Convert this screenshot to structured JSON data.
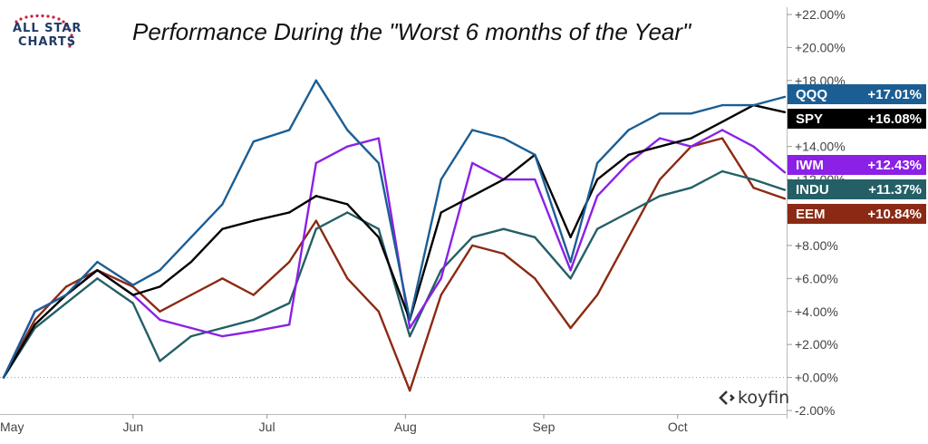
{
  "logo": {
    "line1": "ALL STAR",
    "line2": "CHARTS"
  },
  "watermark": "koyfin",
  "colors": {
    "QQQ": "#1b5e94",
    "SPY": "#000000",
    "IWM": "#8b20e6",
    "INDU": "#245f66",
    "EEM": "#8b2a14"
  },
  "chart_data": {
    "type": "line",
    "title": "Performance During the \"Worst 6 months of the Year\"",
    "xlabel": "",
    "ylabel": "",
    "x_ticks": [
      "May",
      "Jun",
      "Jul",
      "Aug",
      "Sep",
      "Oct"
    ],
    "y_ticks": [
      "-2.00%",
      "+0.00%",
      "+2.00%",
      "+4.00%",
      "+6.00%",
      "+8.00%",
      "+10.00%",
      "+12.00%",
      "+14.00%",
      "+16.00%",
      "+18.00%",
      "+20.00%",
      "+22.00%"
    ],
    "ylim": [
      -2,
      22
    ],
    "grid": false,
    "baseline": 0,
    "x": [
      "2021-05-03",
      "2021-05-10",
      "2021-05-17",
      "2021-05-24",
      "2021-06-01",
      "2021-06-07",
      "2021-06-14",
      "2021-06-21",
      "2021-06-28",
      "2021-07-06",
      "2021-07-12",
      "2021-07-19",
      "2021-07-26",
      "2021-08-02",
      "2021-08-09",
      "2021-08-16",
      "2021-08-23",
      "2021-08-30",
      "2021-09-07",
      "2021-09-13",
      "2021-09-20",
      "2021-09-27",
      "2021-10-04",
      "2021-10-11",
      "2021-10-18",
      "2021-10-25"
    ],
    "series": [
      {
        "name": "QQQ",
        "label": "+17.01%",
        "values": [
          0.0,
          4.0,
          5.0,
          7.0,
          5.6,
          6.5,
          8.5,
          10.5,
          14.3,
          15.0,
          18.0,
          15.0,
          13.0,
          3.5,
          12.0,
          15.0,
          14.5,
          13.5,
          7.0,
          13.0,
          15.0,
          16.0,
          16.0,
          16.5,
          16.5,
          17.01
        ]
      },
      {
        "name": "SPY",
        "label": "+16.08%",
        "values": [
          0.0,
          3.2,
          5.0,
          6.5,
          5.0,
          5.5,
          7.0,
          9.0,
          9.5,
          10.0,
          11.0,
          10.5,
          8.5,
          3.5,
          10.0,
          11.0,
          12.0,
          13.5,
          8.5,
          12.0,
          13.5,
          14.0,
          14.5,
          15.5,
          16.5,
          16.08
        ]
      },
      {
        "name": "IWM",
        "label": "+12.43%",
        "values": [
          0.0,
          4.0,
          5.0,
          6.5,
          5.0,
          3.5,
          3.0,
          2.5,
          2.8,
          3.2,
          13.0,
          14.0,
          14.5,
          3.0,
          6.0,
          13.0,
          12.0,
          12.0,
          6.5,
          11.0,
          13.0,
          14.5,
          14.0,
          15.0,
          14.0,
          12.43
        ]
      },
      {
        "name": "INDU",
        "label": "+11.37%",
        "values": [
          0.0,
          3.0,
          4.5,
          6.0,
          4.5,
          1.0,
          2.5,
          3.0,
          3.5,
          4.5,
          9.0,
          10.0,
          9.0,
          2.5,
          6.5,
          8.5,
          9.0,
          8.5,
          6.0,
          9.0,
          10.0,
          11.0,
          11.5,
          12.5,
          12.0,
          11.37
        ]
      },
      {
        "name": "EEM",
        "label": "+10.84%",
        "values": [
          0.0,
          3.5,
          5.5,
          6.5,
          5.5,
          4.0,
          5.0,
          6.0,
          5.0,
          7.0,
          9.5,
          6.0,
          4.0,
          -0.8,
          5.0,
          8.0,
          7.5,
          6.0,
          3.0,
          5.0,
          8.5,
          12.0,
          14.0,
          14.5,
          11.5,
          10.84
        ]
      }
    ]
  }
}
